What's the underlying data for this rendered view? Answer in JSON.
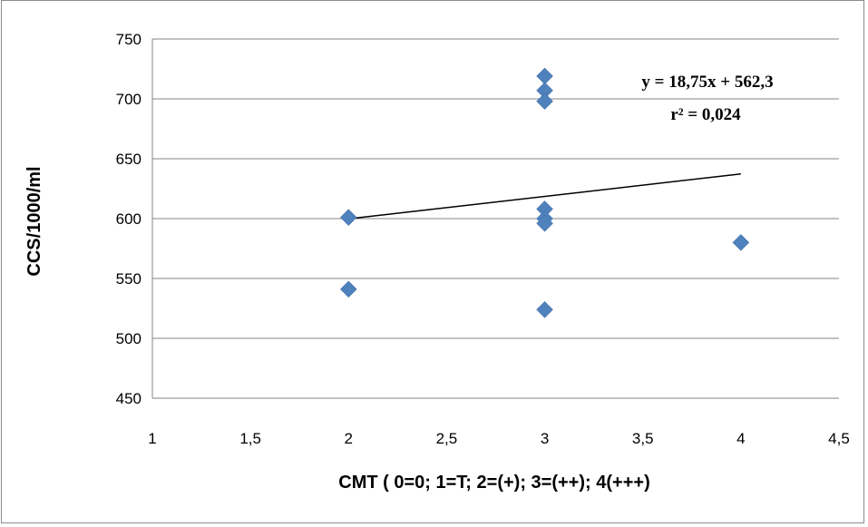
{
  "chart_data": {
    "type": "scatter",
    "xlabel": "CMT ( 0=0; 1=T; 2=(+); 3=(++); 4(+++)",
    "ylabel": "CCS/1000/ml",
    "xlim": [
      1,
      4.5
    ],
    "ylim": [
      450,
      750
    ],
    "x_ticks": [
      1,
      1.5,
      2,
      2.5,
      3,
      3.5,
      4,
      4.5
    ],
    "x_tick_labels": [
      "1",
      "1,5",
      "2",
      "2,5",
      "3",
      "3,5",
      "4",
      "4,5"
    ],
    "y_ticks": [
      450,
      500,
      550,
      600,
      650,
      700,
      750
    ],
    "y_tick_labels": [
      "450",
      "500",
      "550",
      "600",
      "650",
      "700",
      "750"
    ],
    "grid": "horizontal",
    "legend": "none",
    "series": [
      {
        "marker": "diamond",
        "color": "#4f81bd",
        "points": [
          {
            "x": 2,
            "y": 601
          },
          {
            "x": 2,
            "y": 541
          },
          {
            "x": 3,
            "y": 719
          },
          {
            "x": 3,
            "y": 707
          },
          {
            "x": 3,
            "y": 698
          },
          {
            "x": 3,
            "y": 608
          },
          {
            "x": 3,
            "y": 600
          },
          {
            "x": 3,
            "y": 596
          },
          {
            "x": 3,
            "y": 524
          },
          {
            "x": 4,
            "y": 580
          }
        ]
      }
    ],
    "trendline": {
      "type": "linear",
      "slope": 18.75,
      "intercept": 562.3,
      "x_range": [
        2,
        4
      ],
      "color": "#000000",
      "equation_text": "y = 18,75x + 562,3",
      "r2_text": "r² = 0,024"
    }
  }
}
